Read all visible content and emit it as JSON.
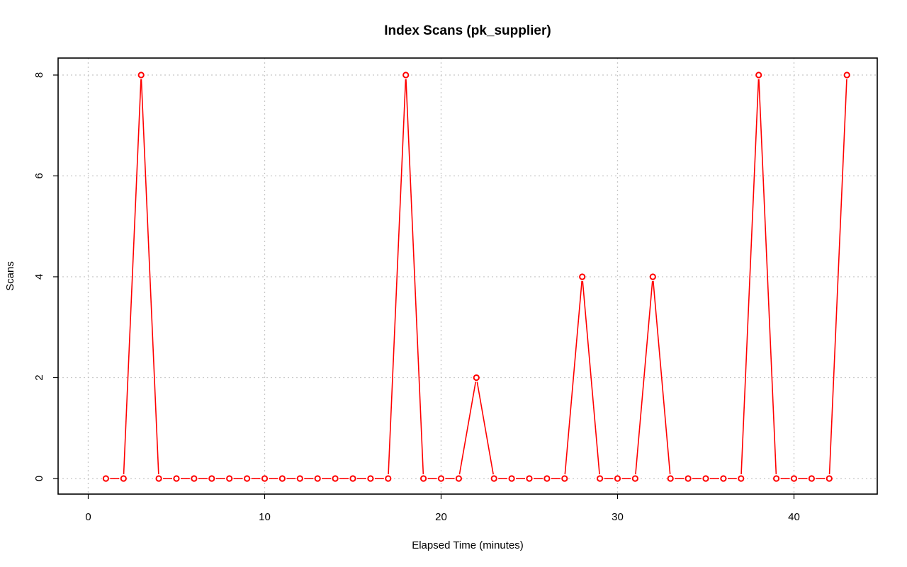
{
  "chart_data": {
    "type": "line",
    "title": "Index Scans (pk_supplier)",
    "xlabel": "Elapsed Time (minutes)",
    "ylabel": "Scans",
    "xlim": [
      0,
      45
    ],
    "ylim": [
      0,
      8
    ],
    "x_ticks": [
      0,
      10,
      20,
      30,
      40
    ],
    "y_ticks": [
      0,
      2,
      4,
      6,
      8
    ],
    "grid": true,
    "series": [
      {
        "color": "#ff0000",
        "x": [
          1,
          2,
          3,
          4,
          5,
          6,
          7,
          8,
          9,
          10,
          11,
          12,
          13,
          14,
          15,
          16,
          17,
          18,
          19,
          20,
          21,
          22,
          23,
          24,
          25,
          26,
          27,
          28,
          29,
          30,
          31,
          32,
          33,
          34,
          35,
          36,
          37,
          38,
          39,
          40,
          41,
          42,
          43
        ],
        "y": [
          0,
          0,
          8,
          0,
          0,
          0,
          0,
          0,
          0,
          0,
          0,
          0,
          0,
          0,
          0,
          0,
          0,
          8,
          0,
          0,
          0,
          2,
          0,
          0,
          0,
          0,
          0,
          4,
          0,
          0,
          0,
          4,
          0,
          0,
          0,
          0,
          0,
          8,
          0,
          0,
          0,
          0,
          8
        ]
      }
    ]
  }
}
